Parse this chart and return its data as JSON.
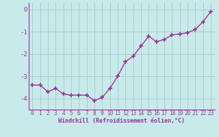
{
  "x": [
    0,
    1,
    2,
    3,
    4,
    5,
    6,
    7,
    8,
    9,
    10,
    11,
    12,
    13,
    14,
    15,
    16,
    17,
    18,
    19,
    20,
    21,
    22,
    23
  ],
  "y": [
    -3.4,
    -3.4,
    -3.7,
    -3.55,
    -3.8,
    -3.85,
    -3.85,
    -3.85,
    -4.1,
    -3.95,
    -3.55,
    -3.0,
    -2.35,
    -2.1,
    -1.65,
    -1.2,
    -1.45,
    -1.35,
    -1.15,
    -1.1,
    -1.05,
    -0.9,
    -0.55,
    -0.1
  ],
  "line_color": "#993399",
  "marker": "+",
  "marker_size": 4,
  "marker_lw": 1.2,
  "line_width": 1.0,
  "bg_color": "#c8eaea",
  "grid_color": "#aacccc",
  "xlabel": "Windchill (Refroidissement éolien,°C)",
  "xlabel_color": "#993399",
  "tick_color": "#993399",
  "label_color": "#993399",
  "ylim": [
    -4.5,
    0.3
  ],
  "xlim": [
    -0.5,
    23.5
  ],
  "yticks": [
    0,
    -1,
    -2,
    -3,
    -4
  ],
  "ytick_labels": [
    "0",
    "-1",
    "-2",
    "-3",
    "-4"
  ],
  "xticks": [
    0,
    1,
    2,
    3,
    4,
    5,
    6,
    7,
    8,
    9,
    10,
    11,
    12,
    13,
    14,
    15,
    16,
    17,
    18,
    19,
    20,
    21,
    22,
    23
  ],
  "tick_fontsize": 5.5,
  "xlabel_fontsize": 6.0,
  "ytick_fontsize": 6.5
}
